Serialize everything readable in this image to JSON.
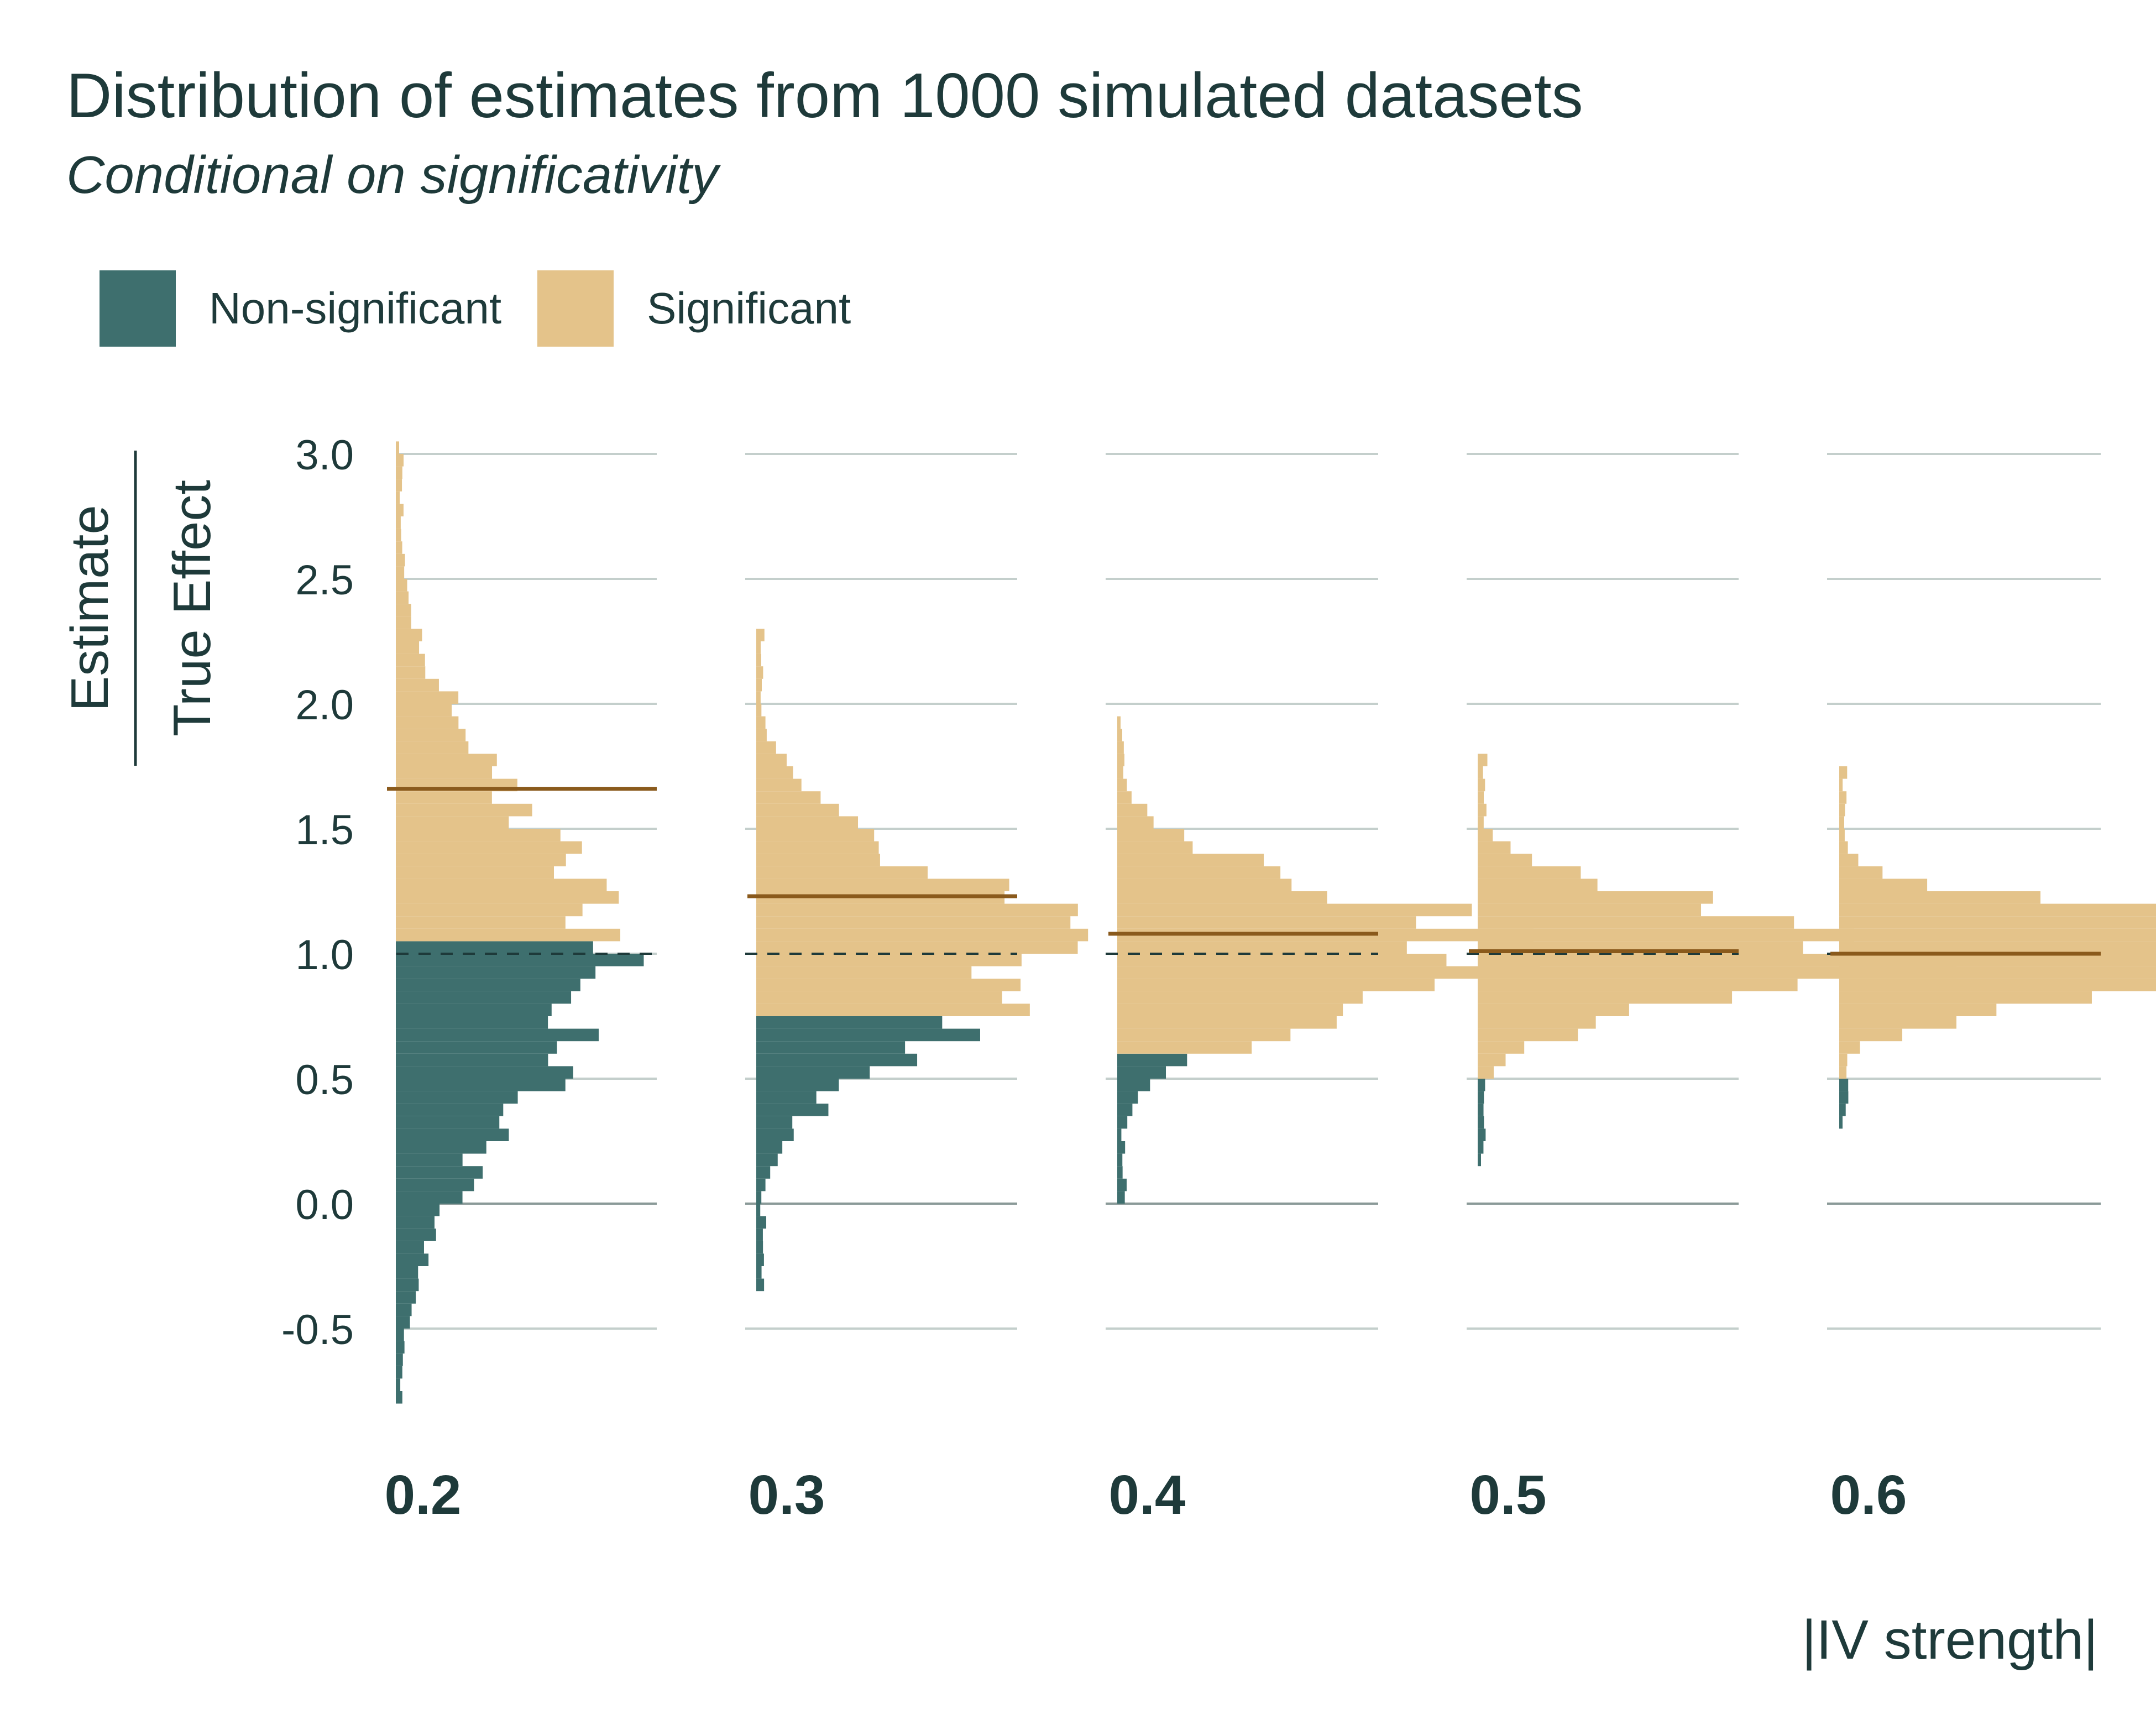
{
  "title": "Distribution of estimates from 1000 simulated datasets",
  "subtitle": "Conditional on significativity",
  "legend": {
    "items": [
      {
        "label": "Non-significant",
        "color": "#3e6f6e"
      },
      {
        "label": "Significant",
        "color": "#e4c38a"
      }
    ]
  },
  "chart_data": {
    "type": "histogram",
    "orientation": "horizontal",
    "xlabel": "|IV strength|",
    "ylabel_numerator": "Estimate",
    "ylabel_denominator": "True Effect",
    "yticks": [
      "-0.5",
      "0.0",
      "0.5",
      "1.0",
      "1.5",
      "2.0",
      "2.5",
      "3.0"
    ],
    "ylim": [
      -0.8,
      3.0
    ],
    "reference_line": 1.0,
    "grid": true,
    "legend_position": "top-left",
    "colors": {
      "non_significant": "#3e6f6e",
      "significant": "#e4c38a",
      "mean_line": "#8a5a1c",
      "reference": "#1e3a3a"
    },
    "panels": [
      {
        "label": "0.2",
        "mean_significant": 1.66,
        "lower_cut": 1.03,
        "upper_cut": 1.18,
        "significance_threshold": 1.03,
        "min": -0.8,
        "max": 3.0,
        "spread": 0.62,
        "peak_count": 22
      },
      {
        "label": "0.3",
        "mean_significant": 1.23,
        "lower_cut": 0.75,
        "upper_cut": 0.75,
        "significance_threshold": 0.75,
        "min": -0.35,
        "max": 2.3,
        "spread": 0.35,
        "peak_count": 32
      },
      {
        "label": "0.4",
        "mean_significant": 1.08,
        "lower_cut": 0.6,
        "upper_cut": 0.6,
        "significance_threshold": 0.6,
        "min": 0.02,
        "max": 1.93,
        "spread": 0.25,
        "peak_count": 40
      },
      {
        "label": "0.5",
        "mean_significant": 1.01,
        "lower_cut": 0.48,
        "upper_cut": 0.48,
        "significance_threshold": 0.48,
        "min": 0.18,
        "max": 1.78,
        "spread": 0.18,
        "peak_count": 47
      },
      {
        "label": "0.6",
        "mean_significant": 1.0,
        "lower_cut": 0.5,
        "upper_cut": 0.5,
        "significance_threshold": 0.5,
        "min": 0.33,
        "max": 1.73,
        "spread": 0.15,
        "peak_count": 60
      }
    ]
  }
}
